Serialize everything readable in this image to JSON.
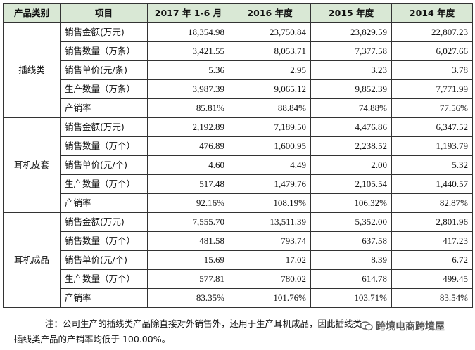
{
  "table": {
    "headers": [
      "产品类别",
      "项目",
      "2017 年 1-6 月",
      "2016 年度",
      "2015 年度",
      "2014 年度"
    ],
    "groups": [
      {
        "category": "插线类",
        "rows": [
          {
            "item": "销售金额(万元)",
            "values": [
              "18,354.98",
              "23,750.84",
              "23,829.59",
              "22,807.23"
            ]
          },
          {
            "item": "销售数量（万条）",
            "values": [
              "3,421.55",
              "8,053.71",
              "7,377.58",
              "6,027.66"
            ]
          },
          {
            "item": "销售单价(元/条)",
            "values": [
              "5.36",
              "2.95",
              "3.23",
              "3.78"
            ]
          },
          {
            "item": "生产数量（万条）",
            "values": [
              "3,987.39",
              "9,065.12",
              "9,852.39",
              "7,771.99"
            ]
          },
          {
            "item": "产销率",
            "values": [
              "85.81%",
              "88.84%",
              "74.88%",
              "77.56%"
            ]
          }
        ]
      },
      {
        "category": "耳机皮套",
        "rows": [
          {
            "item": "销售金额(万元)",
            "values": [
              "2,192.89",
              "7,189.50",
              "4,476.86",
              "6,347.52"
            ]
          },
          {
            "item": "销售数量（万个）",
            "values": [
              "476.89",
              "1,600.95",
              "2,238.52",
              "1,193.79"
            ]
          },
          {
            "item": "销售单价(元/个)",
            "values": [
              "4.60",
              "4.49",
              "2.00",
              "5.32"
            ]
          },
          {
            "item": "生产数量（万个）",
            "values": [
              "517.48",
              "1,479.76",
              "2,105.54",
              "1,440.57"
            ]
          },
          {
            "item": "产销率",
            "values": [
              "92.16%",
              "108.19%",
              "106.32%",
              "82.87%"
            ]
          }
        ]
      },
      {
        "category": "耳机成品",
        "rows": [
          {
            "item": "销售金额(万元)",
            "values": [
              "7,555.70",
              "13,511.39",
              "5,352.00",
              "2,801.96"
            ]
          },
          {
            "item": "销售数量（万个）",
            "values": [
              "481.58",
              "793.74",
              "637.58",
              "417.23"
            ]
          },
          {
            "item": "销售单价(元/个)",
            "values": [
              "15.69",
              "17.02",
              "8.39",
              "6.72"
            ]
          },
          {
            "item": "生产数量（万个）",
            "values": [
              "577.81",
              "780.02",
              "614.78",
              "499.45"
            ]
          },
          {
            "item": "产销率",
            "values": [
              "83.35%",
              "101.76%",
              "103.71%",
              "83.54%"
            ]
          }
        ]
      }
    ]
  },
  "note": {
    "line1": "注：公司生产的插线类产品除直接对外销售外，还用于生产耳机成品，因此插线类",
    "line2": "插线类产品的产销率均低于 100.00%。"
  },
  "watermark": {
    "text": "跨境电商跨境屋",
    "icon": "wechat-bubble-icon"
  }
}
